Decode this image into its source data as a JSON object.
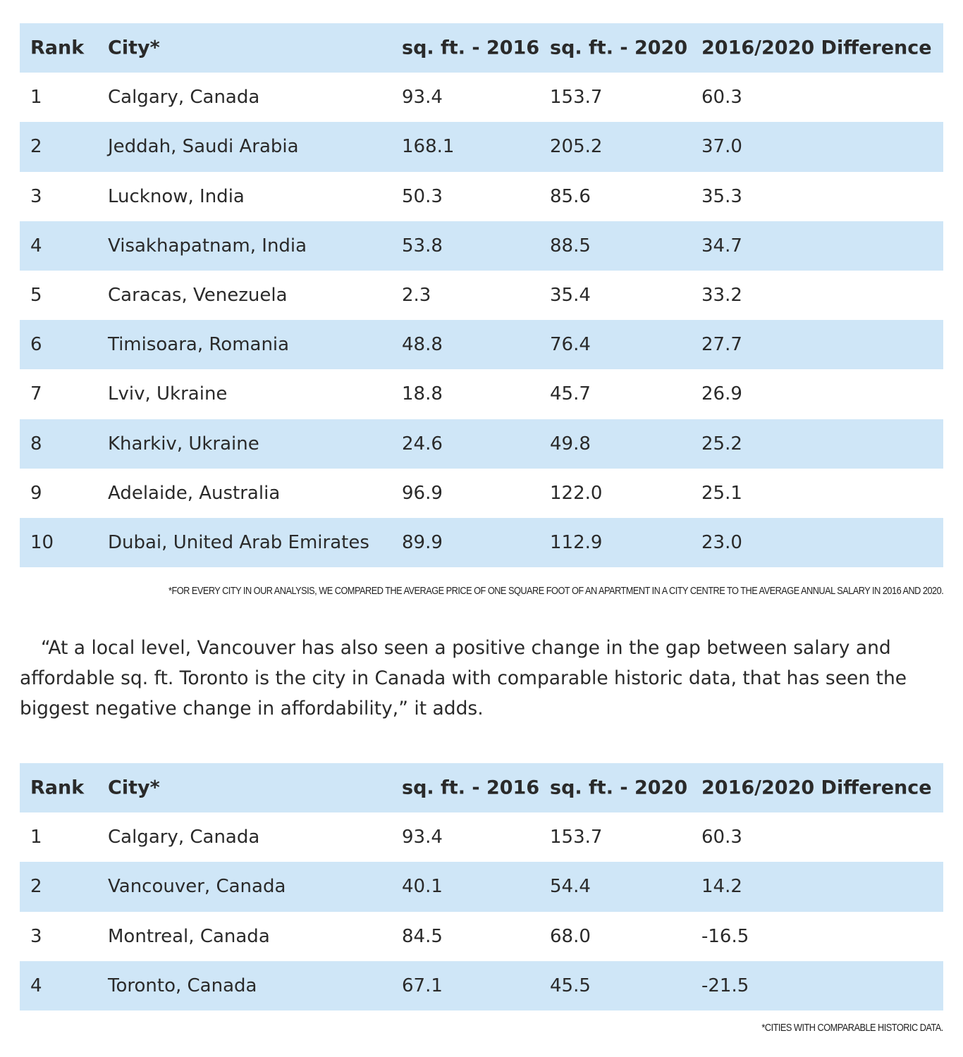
{
  "headers": [
    "Rank",
    "City*",
    "sq. ft. - 2016",
    "sq. ft. - 2020",
    "2016/2020 Difference"
  ],
  "table1": [
    [
      "1",
      "Calgary, Canada",
      "93.4",
      "153.7",
      "60.3"
    ],
    [
      "2",
      "Jeddah, Saudi Arabia",
      "168.1",
      "205.2",
      "37.0"
    ],
    [
      "3",
      "Lucknow, India",
      "50.3",
      "85.6",
      "35.3"
    ],
    [
      "4",
      "Visakhapatnam, India",
      "53.8",
      "88.5",
      "34.7"
    ],
    [
      "5",
      "Caracas, Venezuela",
      "2.3",
      "35.4",
      "33.2"
    ],
    [
      "6",
      "Timisoara, Romania",
      "48.8",
      "76.4",
      "27.7"
    ],
    [
      "7",
      "Lviv, Ukraine",
      "18.8",
      "45.7",
      "26.9"
    ],
    [
      "8",
      "Kharkiv, Ukraine",
      "24.6",
      "49.8",
      "25.2"
    ],
    [
      "9",
      "Adelaide, Australia",
      "96.9",
      "122.0",
      "25.1"
    ],
    [
      "10",
      "Dubai, United Arab Emirates",
      "89.9",
      "112.9",
      "23.0"
    ]
  ],
  "note1": "*FOR EVERY CITY IN OUR ANALYSIS, WE COMPARED THE AVERAGE PRICE OF ONE SQUARE FOOT OF AN APARTMENT IN A CITY CENTRE TO THE AVERAGE ANNUAL SALARY IN 2016 AND 2020.",
  "paragraph": "“At a local level, Vancouver has also seen a positive change in the gap between salary and affordable sq. ft. Toronto is the city in Canada with comparable historic data, that has seen the biggest negative change in affordability,” it adds.",
  "table2": [
    [
      "1",
      "Calgary, Canada",
      "93.4",
      "153.7",
      "60.3"
    ],
    [
      "2",
      "Vancouver, Canada",
      "40.1",
      "54.4",
      "14.2"
    ],
    [
      "3",
      "Montreal, Canada",
      "84.5",
      "68.0",
      "-16.5"
    ],
    [
      "4",
      "Toronto, Canada",
      "67.1",
      "45.5",
      "-21.5"
    ]
  ],
  "note2": "*CITIES WITH COMPARABLE HISTORIC DATA."
}
